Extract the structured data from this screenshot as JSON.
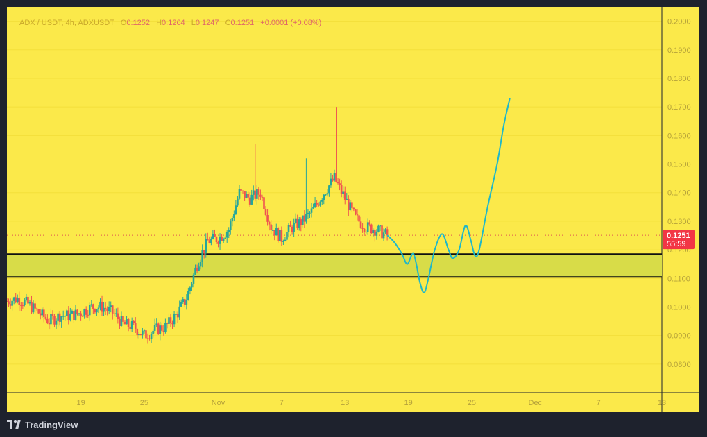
{
  "header": {
    "symbol": "ADX / USDT, 4h, ADXUSDT",
    "o_label": "O",
    "o_value": "0.1252",
    "h_label": "H",
    "h_value": "0.1264",
    "l_label": "L",
    "l_value": "0.1247",
    "c_label": "C",
    "c_value": "0.1251",
    "change": "+0.0001 (+0.08%)"
  },
  "price_tag": {
    "price": "0.1251",
    "countdown": "55:59"
  },
  "footer": {
    "brand": "TradingView"
  },
  "colors": {
    "background": "#fbe94a",
    "up": "#26a69a",
    "down": "#ef5350",
    "projection": "#1fb7c9",
    "zone": "#d8dc48",
    "price_tag": "#f23645"
  },
  "chart_data": {
    "type": "candlestick",
    "ylim": [
      0.07,
      0.205
    ],
    "y_ticks": [
      "0.2000",
      "0.1900",
      "0.1800",
      "0.1700",
      "0.1600",
      "0.1500",
      "0.1400",
      "0.1300",
      "0.1200",
      "0.1100",
      "0.1000",
      "0.0900",
      "0.0800"
    ],
    "y_tick_values": [
      0.2,
      0.19,
      0.18,
      0.17,
      0.16,
      0.15,
      0.14,
      0.13,
      0.12,
      0.11,
      0.1,
      0.09,
      0.08
    ],
    "x_ticks": [
      "19",
      "25",
      "Nov",
      "7",
      "13",
      "19",
      "25",
      "Dec",
      "7",
      "13"
    ],
    "x_tick_days": [
      -13,
      -7,
      0,
      6,
      12,
      18,
      24,
      30,
      36,
      42
    ],
    "x_range_days": [
      -20,
      42
    ],
    "close_path": [
      [
        -20,
        0.102
      ],
      [
        -19,
        0.103
      ],
      [
        -18,
        0.101
      ],
      [
        -17,
        0.098
      ],
      [
        -16,
        0.095
      ],
      [
        -15,
        0.097
      ],
      [
        -14,
        0.097
      ],
      [
        -13,
        0.098
      ],
      [
        -12,
        0.1
      ],
      [
        -11,
        0.1
      ],
      [
        -10,
        0.098
      ],
      [
        -9,
        0.094
      ],
      [
        -8,
        0.093
      ],
      [
        -7,
        0.09
      ],
      [
        -6,
        0.092
      ],
      [
        -5,
        0.093
      ],
      [
        -4,
        0.097
      ],
      [
        -3,
        0.103
      ],
      [
        -2,
        0.115
      ],
      [
        -1,
        0.123
      ],
      [
        0,
        0.124
      ],
      [
        1,
        0.127
      ],
      [
        2,
        0.14
      ],
      [
        3,
        0.138
      ],
      [
        4,
        0.14
      ],
      [
        5,
        0.128
      ],
      [
        6,
        0.124
      ],
      [
        7,
        0.128
      ],
      [
        8,
        0.13
      ],
      [
        9,
        0.134
      ],
      [
        10,
        0.14
      ],
      [
        11,
        0.145
      ],
      [
        12,
        0.138
      ],
      [
        13,
        0.131
      ],
      [
        14,
        0.128
      ],
      [
        15,
        0.127
      ],
      [
        16,
        0.125
      ]
    ],
    "spikes": [
      [
        3.5,
        0.157
      ],
      [
        11.1,
        0.17
      ],
      [
        8.4,
        0.152
      ]
    ],
    "support_zone": [
      0.1105,
      0.1185
    ],
    "projection_path": [
      [
        16.0,
        0.1251
      ],
      [
        16.7,
        0.1225
      ],
      [
        17.4,
        0.1185
      ],
      [
        17.9,
        0.115
      ],
      [
        18.5,
        0.1185
      ],
      [
        19.1,
        0.1085
      ],
      [
        19.5,
        0.105
      ],
      [
        19.9,
        0.11
      ],
      [
        20.5,
        0.12
      ],
      [
        21.2,
        0.1255
      ],
      [
        21.8,
        0.12
      ],
      [
        22.2,
        0.117
      ],
      [
        22.8,
        0.12
      ],
      [
        23.4,
        0.1285
      ],
      [
        23.9,
        0.1235
      ],
      [
        24.3,
        0.118
      ],
      [
        24.7,
        0.12
      ],
      [
        25.5,
        0.135
      ],
      [
        26.4,
        0.15
      ],
      [
        27.0,
        0.163
      ],
      [
        27.6,
        0.173
      ]
    ],
    "last_price": 0.1251
  }
}
